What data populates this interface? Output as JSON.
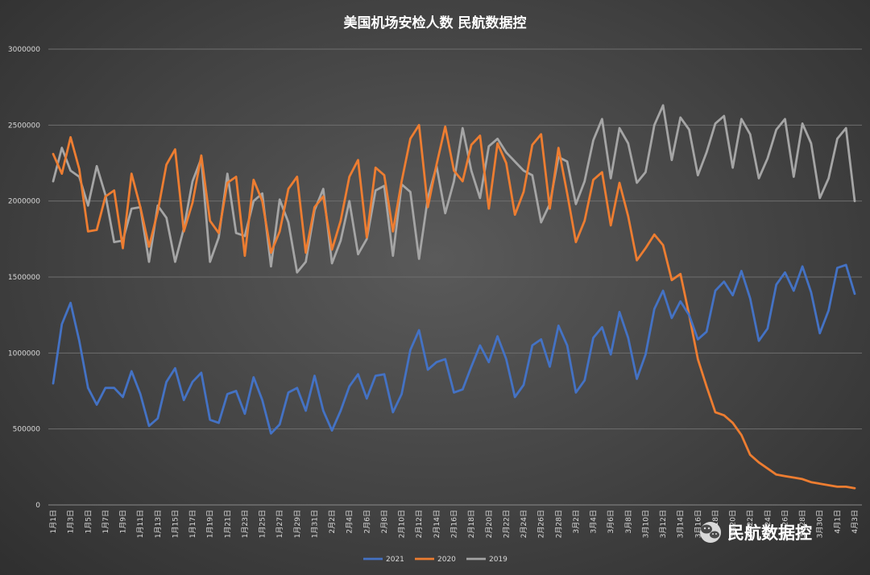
{
  "chart_data": {
    "type": "line",
    "title": "美国机场安检人数  民航数据控",
    "ylim": [
      0,
      3000000
    ],
    "yticks": [
      0,
      500000,
      1000000,
      1500000,
      2000000,
      2500000,
      3000000
    ],
    "grid": true,
    "legend_position": "bottom",
    "categories": [
      "1月1日",
      "1月2日",
      "1月3日",
      "1月4日",
      "1月5日",
      "1月6日",
      "1月7日",
      "1月8日",
      "1月9日",
      "1月10日",
      "1月11日",
      "1月12日",
      "1月13日",
      "1月14日",
      "1月15日",
      "1月16日",
      "1月17日",
      "1月18日",
      "1月19日",
      "1月20日",
      "1月21日",
      "1月22日",
      "1月23日",
      "1月24日",
      "1月25日",
      "1月26日",
      "1月27日",
      "1月28日",
      "1月29日",
      "1月30日",
      "1月31日",
      "2月1日",
      "2月2日",
      "2月3日",
      "2月4日",
      "2月5日",
      "2月6日",
      "2月7日",
      "2月8日",
      "2月9日",
      "2月10日",
      "2月11日",
      "2月12日",
      "2月13日",
      "2月14日",
      "2月15日",
      "2月16日",
      "2月17日",
      "2月18日",
      "2月19日",
      "2月20日",
      "2月21日",
      "2月22日",
      "2月23日",
      "2月24日",
      "2月25日",
      "2月26日",
      "2月27日",
      "2月28日",
      "3月1日",
      "3月2日",
      "3月3日",
      "3月4日",
      "3月5日",
      "3月6日",
      "3月7日",
      "3月8日",
      "3月9日",
      "3月10日",
      "3月11日",
      "3月12日",
      "3月13日",
      "3月14日",
      "3月15日",
      "3月16日",
      "3月17日",
      "3月18日",
      "3月19日",
      "3月20日",
      "3月21日",
      "3月22日",
      "3月23日",
      "3月24日",
      "3月25日",
      "3月26日",
      "3月27日",
      "3月28日",
      "3月29日",
      "3月30日",
      "3月31日",
      "4月1日",
      "4月2日",
      "4月3日"
    ],
    "xtick_labels": [
      "1月1日",
      "1月3日",
      "1月5日",
      "1月7日",
      "1月9日",
      "1月11日",
      "1月13日",
      "1月15日",
      "1月17日",
      "1月19日",
      "1月21日",
      "1月23日",
      "1月25日",
      "1月27日",
      "1月29日",
      "1月31日",
      "2月2日",
      "2月4日",
      "2月6日",
      "2月8日",
      "2月10日",
      "2月12日",
      "2月14日",
      "2月16日",
      "2月18日",
      "2月20日",
      "2月22日",
      "2月24日",
      "2月26日",
      "2月28日",
      "3月2日",
      "3月4日",
      "3月6日",
      "3月8日",
      "3月10日",
      "3月12日",
      "3月14日",
      "3月16日",
      "3月18日",
      "3月20日",
      "3月22日",
      "3月24日",
      "3月26日",
      "3月28日",
      "3月30日",
      "4月1日",
      "4月3日"
    ],
    "series": [
      {
        "name": "2021",
        "color": "#4472c4",
        "values": [
          800000,
          1190000,
          1330000,
          1080000,
          770000,
          660000,
          770000,
          770000,
          710000,
          880000,
          730000,
          520000,
          570000,
          810000,
          900000,
          690000,
          810000,
          870000,
          560000,
          540000,
          730000,
          750000,
          600000,
          840000,
          690000,
          470000,
          530000,
          740000,
          770000,
          620000,
          850000,
          620000,
          490000,
          620000,
          780000,
          860000,
          700000,
          850000,
          860000,
          610000,
          730000,
          1020000,
          1150000,
          890000,
          940000,
          960000,
          740000,
          760000,
          910000,
          1050000,
          940000,
          1110000,
          960000,
          710000,
          790000,
          1050000,
          1090000,
          910000,
          1180000,
          1050000,
          740000,
          820000,
          1100000,
          1170000,
          990000,
          1270000,
          1100000,
          830000,
          990000,
          1290000,
          1410000,
          1230000,
          1340000,
          1250000,
          1090000,
          1140000,
          1410000,
          1470000,
          1380000,
          1540000,
          1360000,
          1080000,
          1160000,
          1450000,
          1530000,
          1410000,
          1570000,
          1400000,
          1130000,
          1280000,
          1560000,
          1580000,
          1390000
        ]
      },
      {
        "name": "2020",
        "color": "#ed7d31",
        "values": [
          2310000,
          2180000,
          2420000,
          2210000,
          1800000,
          1810000,
          2030000,
          2070000,
          1690000,
          2180000,
          1960000,
          1700000,
          1930000,
          2240000,
          2340000,
          1800000,
          1990000,
          2300000,
          1870000,
          1790000,
          2120000,
          2160000,
          1640000,
          2140000,
          2000000,
          1660000,
          1800000,
          2080000,
          2160000,
          1660000,
          1960000,
          2030000,
          1680000,
          1870000,
          2160000,
          2270000,
          1760000,
          2220000,
          2170000,
          1800000,
          2130000,
          2410000,
          2500000,
          1960000,
          2240000,
          2490000,
          2200000,
          2130000,
          2370000,
          2430000,
          1950000,
          2380000,
          2250000,
          1910000,
          2060000,
          2370000,
          2440000,
          1950000,
          2350000,
          2050000,
          1730000,
          1870000,
          2140000,
          2190000,
          1840000,
          2120000,
          1900000,
          1610000,
          1690000,
          1780000,
          1710000,
          1480000,
          1520000,
          1250000,
          960000,
          780000,
          610000,
          590000,
          540000,
          460000,
          330000,
          280000,
          240000,
          200000,
          190000,
          180000,
          170000,
          150000,
          140000,
          130000,
          120000,
          120000,
          110000
        ]
      },
      {
        "name": "2019",
        "color": "#a5a5a5",
        "values": [
          2130000,
          2350000,
          2200000,
          2160000,
          1970000,
          2230000,
          2040000,
          1730000,
          1740000,
          1950000,
          1960000,
          1600000,
          1970000,
          1890000,
          1600000,
          1820000,
          2130000,
          2280000,
          1600000,
          1760000,
          2180000,
          1790000,
          1770000,
          2000000,
          2050000,
          1570000,
          2010000,
          1860000,
          1530000,
          1600000,
          1940000,
          2080000,
          1590000,
          1740000,
          2000000,
          1650000,
          1750000,
          2070000,
          2100000,
          1640000,
          2110000,
          2060000,
          1620000,
          2020000,
          2230000,
          1920000,
          2130000,
          2480000,
          2200000,
          2020000,
          2360000,
          2410000,
          2320000,
          2260000,
          2200000,
          2170000,
          1860000,
          1980000,
          2290000,
          2260000,
          1980000,
          2130000,
          2400000,
          2540000,
          2150000,
          2480000,
          2380000,
          2120000,
          2190000,
          2500000,
          2630000,
          2270000,
          2550000,
          2470000,
          2170000,
          2320000,
          2510000,
          2560000,
          2220000,
          2540000,
          2440000,
          2150000,
          2280000,
          2470000,
          2540000,
          2160000,
          2510000,
          2380000,
          2020000,
          2150000,
          2410000,
          2480000,
          2000000
        ]
      }
    ]
  },
  "watermark": {
    "text": "民航数据控",
    "icon": "wechat-icon"
  }
}
